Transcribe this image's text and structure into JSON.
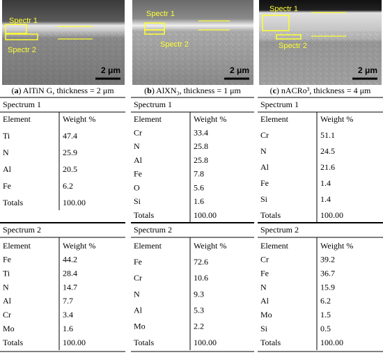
{
  "panels": [
    {
      "image": {
        "labels": [
          "Spectr 1",
          "Spectr 2"
        ],
        "scale": "2 μm"
      },
      "caption": [
        "(",
        "a",
        ") AlTiN G, thickness = 2 μm"
      ],
      "tables": [
        {
          "title": "Spectrum 1",
          "header": [
            "Element",
            "Weight %"
          ],
          "rows": [
            [
              "Ti",
              "47.4"
            ],
            [
              "N",
              "25.9"
            ],
            [
              "Al",
              "20.5"
            ],
            [
              "Fe",
              "6.2"
            ]
          ],
          "totals": [
            "Totals",
            "100.00"
          ]
        },
        {
          "title": "Spectrum 2",
          "header": [
            "Element",
            "Weight %"
          ],
          "rows": [
            [
              "Fe",
              "44.2"
            ],
            [
              "Ti",
              "28.4"
            ],
            [
              "N",
              "14.7"
            ],
            [
              "Al",
              "7.7"
            ],
            [
              "Cr",
              "3.4"
            ],
            [
              "Mo",
              "1.6"
            ]
          ],
          "totals": [
            "Totals",
            "100.00"
          ]
        }
      ]
    },
    {
      "image": {
        "labels": [
          "Spectr 1",
          "Spectr 2"
        ],
        "scale": "2 μm"
      },
      "caption": [
        "(",
        "b",
        ") AlXN₃, thickness = 1 μm"
      ],
      "tables": [
        {
          "title": "Spectrum 1",
          "header": [
            "Element",
            "Weight %"
          ],
          "rows": [
            [
              "Cr",
              "33.4"
            ],
            [
              "N",
              "25.8"
            ],
            [
              "Al",
              "25.8"
            ],
            [
              "Fe",
              "7.8"
            ],
            [
              "O",
              "5.6"
            ],
            [
              "Si",
              "1.6"
            ]
          ],
          "totals": [
            "Totals",
            "100.00"
          ]
        },
        {
          "title": "Spectrum 2",
          "header": [
            "Element",
            "Weight %"
          ],
          "rows": [
            [
              "Fe",
              "72.6"
            ],
            [
              "Cr",
              "10.6"
            ],
            [
              "N",
              "9.3"
            ],
            [
              "Al",
              "5.3"
            ],
            [
              "Mo",
              "2.2"
            ]
          ],
          "totals": [
            "Totals",
            "100.00"
          ]
        }
      ]
    },
    {
      "image": {
        "labels": [
          "Spectr 1",
          "Spectr 2"
        ],
        "scale": "2 μm"
      },
      "caption": [
        "(",
        "c",
        ") nACRo³, thickness = 4 μm"
      ],
      "tables": [
        {
          "title": "Spectrum 1",
          "header": [
            "Element",
            "Weight %"
          ],
          "rows": [
            [
              "Cr",
              "51.1"
            ],
            [
              "N",
              "24.5"
            ],
            [
              "Al",
              "21.6"
            ],
            [
              "Fe",
              "1.4"
            ],
            [
              "Si",
              "1.4"
            ]
          ],
          "totals": [
            "Totals",
            "100.00"
          ]
        },
        {
          "title": "Spectrum 2",
          "header": [
            "Element",
            "Weight %"
          ],
          "rows": [
            [
              "Cr",
              "39.2"
            ],
            [
              "Fe",
              "36.7"
            ],
            [
              "N",
              "15.9"
            ],
            [
              "Al",
              "6.2"
            ],
            [
              "Mo",
              "1.5"
            ],
            [
              "Si",
              "0.5"
            ]
          ],
          "totals": [
            "Totals",
            "100.00"
          ]
        }
      ]
    }
  ]
}
